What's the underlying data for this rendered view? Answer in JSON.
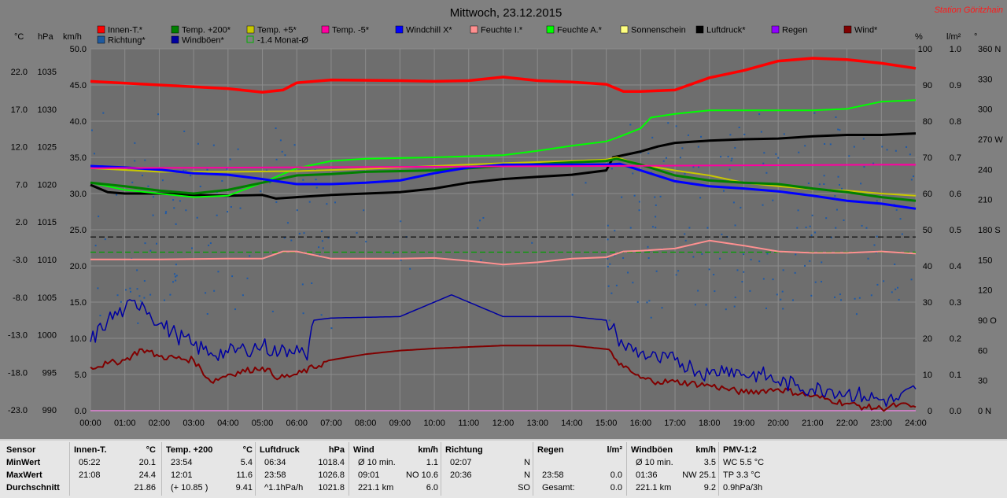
{
  "header": {
    "title": "Mittwoch, 23.12.2015",
    "station": "Station Göritzhain"
  },
  "legend": [
    {
      "label": "Innen-T.*",
      "color": "#ff0000",
      "boxed": false
    },
    {
      "label": "Temp. +200*",
      "color": "#008000",
      "boxed": false
    },
    {
      "label": "Temp. +5*",
      "color": "#c8c800",
      "boxed": false
    },
    {
      "label": "Temp. -5*",
      "color": "#ff00a0",
      "boxed": false
    },
    {
      "label": "Windchill X*",
      "color": "#0000ff",
      "boxed": false
    },
    {
      "label": "Feuchte I.*",
      "color": "#ff9090",
      "boxed": false
    },
    {
      "label": "Feuchte A.*",
      "color": "#00ff00",
      "boxed": false
    },
    {
      "label": "Sonnenschein",
      "color": "#ffff80",
      "boxed": false
    },
    {
      "label": "Luftdruck*",
      "color": "#000000",
      "boxed": false
    },
    {
      "label": "Regen",
      "color": "#9000ff",
      "boxed": false
    },
    {
      "label": "Wind*",
      "color": "#800000",
      "boxed": false
    },
    {
      "label": "Richtung*",
      "color": "#1e5aa0",
      "boxed": false
    },
    {
      "label": "Windböen*",
      "color": "#0000a0",
      "boxed": false
    },
    {
      "label": "-1.4 Monat-Ø",
      "color": "#00b000",
      "boxed": true
    }
  ],
  "units": {
    "c": "°C",
    "hpa": "hPa",
    "kmh": "km/h",
    "pct": "%",
    "lm2": "l/m²",
    "deg": "°"
  },
  "chart_data": {
    "type": "line",
    "x_ticks": [
      "00:00",
      "01:00",
      "02:00",
      "03:00",
      "04:00",
      "05:00",
      "06:00",
      "07:00",
      "08:00",
      "09:00",
      "10:00",
      "11:00",
      "12:00",
      "13:00",
      "14:00",
      "15:00",
      "16:00",
      "17:00",
      "18:00",
      "19:00",
      "20:00",
      "21:00",
      "22:00",
      "23:00",
      "24:00"
    ],
    "axes": {
      "celsius": [
        "22.0",
        "17.0",
        "12.0",
        "7.0",
        "2.0",
        "-3.0",
        "-8.0",
        "-13.0",
        "-18.0",
        "-23.0"
      ],
      "hpa": [
        "1035",
        "1030",
        "1025",
        "1020",
        "1015",
        "1010",
        "1005",
        "1000",
        "995",
        "990"
      ],
      "kmh": [
        "50.0",
        "45.0",
        "40.0",
        "35.0",
        "30.0",
        "25.0",
        "20.0",
        "15.0",
        "10.0",
        "5.0",
        "0.0"
      ],
      "pct": [
        "100",
        "90",
        "80",
        "70",
        "60",
        "50",
        "40",
        "30",
        "20",
        "10",
        "0"
      ],
      "lm2": [
        "1.0",
        "0.9",
        "0.8",
        "0.7",
        "0.6",
        "0.5",
        "0.4",
        "0.3",
        "0.2",
        "0.1",
        "0.0"
      ],
      "dir": [
        "360 N",
        "330",
        "300",
        "270 W",
        "240",
        "210",
        "180 S",
        "150",
        "120",
        "90 O",
        "60",
        "30",
        "0 N"
      ]
    },
    "kmh_range": [
      0,
      50
    ],
    "series": [
      {
        "name": "Innen-T.*",
        "color": "#ff0000",
        "x": [
          0,
          2,
          4,
          5,
          5.6,
          6,
          7,
          9,
          10,
          11,
          12,
          13,
          14,
          15,
          15.5,
          16,
          17,
          18,
          19,
          20,
          21,
          22,
          23,
          24
        ],
        "y": [
          45.5,
          45.0,
          44.5,
          44.0,
          44.3,
          45.3,
          45.7,
          45.6,
          45.5,
          45.6,
          46.1,
          45.6,
          45.4,
          45.1,
          44.1,
          44.1,
          44.3,
          46.0,
          47.0,
          48.3,
          48.7,
          48.5,
          48.0,
          47.3
        ]
      },
      {
        "name": "Feuchte A.*",
        "color": "#00ff00",
        "x": [
          0,
          1,
          2,
          3,
          4,
          5,
          6,
          7,
          8,
          10,
          12,
          13,
          14,
          15,
          15.3,
          16,
          16.3,
          17,
          18,
          19,
          20,
          21,
          22,
          23,
          24
        ],
        "y": [
          31.5,
          30.5,
          30.0,
          29.5,
          29.7,
          31.5,
          33.5,
          34.5,
          34.8,
          35.0,
          35.3,
          35.9,
          36.6,
          37.2,
          37.7,
          39.0,
          40.5,
          41.0,
          41.5,
          41.5,
          41.5,
          41.5,
          41.7,
          42.7,
          42.9
        ]
      },
      {
        "name": "Temp. +5*",
        "color": "#c8c800",
        "x": [
          0,
          2,
          4,
          6,
          8,
          10,
          12,
          14,
          15,
          15.3,
          16,
          17,
          18,
          19,
          20,
          21,
          22,
          23,
          24
        ],
        "y": [
          33.5,
          33.0,
          33.0,
          33.1,
          33.4,
          33.8,
          34.2,
          34.5,
          34.7,
          35.0,
          34.0,
          33.2,
          32.5,
          31.5,
          31.0,
          30.6,
          30.4,
          30.0,
          29.7
        ]
      },
      {
        "name": "Temp. +200*",
        "color": "#008000",
        "x": [
          0,
          1,
          2,
          3,
          4,
          5,
          6,
          7,
          8,
          10,
          12,
          14,
          15,
          15.3,
          16,
          17,
          18,
          19,
          20,
          21,
          22,
          23,
          24
        ],
        "y": [
          31.5,
          31.0,
          30.4,
          30.0,
          30.5,
          31.5,
          32.5,
          32.7,
          33.0,
          33.2,
          33.8,
          34.3,
          34.5,
          34.8,
          34.0,
          32.5,
          31.8,
          31.5,
          31.3,
          30.7,
          30.2,
          29.5,
          29.0
        ]
      },
      {
        "name": "Temp. -5*",
        "color": "#ff00a0",
        "x": [
          0,
          24
        ],
        "y": [
          33.5,
          34.0
        ]
      },
      {
        "name": "Windchill X*",
        "color": "#0000ff",
        "x": [
          0,
          1,
          2,
          3,
          4,
          5,
          6,
          7,
          8,
          9,
          10,
          11,
          12,
          13,
          14,
          15,
          15.4,
          16,
          17,
          18,
          19,
          20,
          21,
          22,
          23,
          24
        ],
        "y": [
          33.8,
          33.6,
          33.3,
          32.8,
          32.6,
          32.0,
          31.3,
          31.3,
          31.5,
          31.8,
          32.8,
          33.6,
          34.0,
          34.0,
          34.0,
          34.0,
          34.1,
          33.2,
          31.7,
          31.0,
          30.7,
          30.3,
          29.7,
          29.0,
          28.6,
          27.9
        ]
      },
      {
        "name": "Feuchte I.*",
        "color": "#ff9090",
        "x": [
          0,
          2,
          4,
          5,
          5.6,
          6,
          7,
          9,
          10,
          11,
          12,
          13,
          14,
          15,
          15.5,
          16,
          17,
          18,
          19,
          20,
          21,
          22,
          23,
          24
        ],
        "y": [
          20.9,
          20.9,
          21.0,
          21.0,
          22.0,
          22.0,
          21.0,
          21.0,
          21.1,
          20.7,
          20.2,
          20.5,
          21.0,
          21.2,
          22.0,
          22.1,
          22.4,
          23.5,
          22.8,
          22.0,
          21.8,
          21.8,
          22.0,
          21.7
        ]
      },
      {
        "name": "Luftdruck*",
        "color": "#000000",
        "x": [
          0,
          0.5,
          1,
          2,
          3,
          4,
          5,
          5.4,
          6,
          7,
          8,
          9,
          10,
          11,
          12,
          13,
          14,
          15,
          15.2,
          16,
          16.5,
          17,
          18,
          19,
          20,
          21,
          22,
          23,
          24
        ],
        "y": [
          31.2,
          30.2,
          30.0,
          30.0,
          29.8,
          29.7,
          29.8,
          29.3,
          29.5,
          29.8,
          30.0,
          30.2,
          30.7,
          31.5,
          32.0,
          32.3,
          32.6,
          33.2,
          35.0,
          35.8,
          36.5,
          37.0,
          37.3,
          37.5,
          37.6,
          37.9,
          38.1,
          38.1,
          38.3
        ]
      },
      {
        "name": "Windböen*",
        "color": "#0000a0",
        "x": [
          0,
          0.5,
          1,
          1.5,
          2,
          2.5,
          3,
          3.5,
          4,
          4.5,
          5,
          5.5,
          6,
          6.3,
          6.5,
          7,
          9,
          10.5,
          12,
          14,
          15,
          15.3,
          15.5,
          16,
          16.5,
          17,
          17.5,
          18,
          18.5,
          19,
          19.5,
          20,
          20.5,
          21,
          21.5,
          22,
          22.5,
          23,
          23.5,
          24
        ],
        "y": [
          9.5,
          12.5,
          14.0,
          15.0,
          12.0,
          10.5,
          9.0,
          8.0,
          8.0,
          8.5,
          9.0,
          8.0,
          9.0,
          7.0,
          12.5,
          12.8,
          13.0,
          16.0,
          13.0,
          13.0,
          12.5,
          10.5,
          9.0,
          8.0,
          7.0,
          7.0,
          6.0,
          5.0,
          6.0,
          5.0,
          5.0,
          4.0,
          3.5,
          3.0,
          3.0,
          2.5,
          2.0,
          1.5,
          1.5,
          3.0
        ]
      },
      {
        "name": "Wind*",
        "color": "#800000",
        "x": [
          0,
          0.5,
          1,
          1.5,
          2,
          3,
          3.5,
          4,
          5,
          5.5,
          6,
          7,
          8,
          9,
          10,
          11,
          12,
          13,
          14,
          15,
          15.3,
          15.5,
          16,
          16.5,
          17,
          18,
          18.5,
          19,
          20,
          21,
          21.5,
          22,
          22.5,
          23,
          23.5,
          24
        ],
        "y": [
          6.0,
          6.5,
          7.0,
          8.5,
          7.5,
          7.0,
          4.0,
          5.0,
          6.0,
          4.5,
          5.0,
          7.0,
          7.8,
          8.3,
          8.6,
          8.8,
          9.0,
          9.0,
          9.0,
          8.5,
          7.0,
          6.0,
          4.5,
          4.0,
          4.0,
          3.5,
          3.0,
          2.5,
          3.0,
          2.0,
          1.5,
          1.0,
          0.5,
          0.3,
          0.8,
          0.5
        ]
      },
      {
        "name": "Sonnenschein",
        "color": "#ffff80",
        "x": [
          0,
          24
        ],
        "y": [
          0,
          0
        ]
      },
      {
        "name": "Regen",
        "color": "#9000ff",
        "x": [
          0,
          24
        ],
        "y": [
          0,
          0
        ]
      }
    ],
    "monthly_mean_celsius": -1.4,
    "ref_dashed_black_hpa": 1013.5
  },
  "stats": {
    "rows": [
      "Sensor",
      "MinWert",
      "MaxWert",
      "Durchschnitt"
    ],
    "cols": [
      {
        "h": "Innen-T.",
        "u": "°C",
        "v": [
          [
            "05:22",
            "20.1"
          ],
          [
            "21:08",
            "24.4"
          ],
          [
            "",
            "21.86"
          ]
        ]
      },
      {
        "h": "Temp. +200",
        "u": "°C",
        "v": [
          [
            "23:54",
            "5.4"
          ],
          [
            "12:01",
            "11.6"
          ],
          [
            "(+ 10.85 )",
            "9.41"
          ]
        ]
      },
      {
        "h": "Luftdruck",
        "u": "hPa",
        "v": [
          [
            "06:34",
            "1018.4"
          ],
          [
            "23:58",
            "1026.8"
          ],
          [
            "^1.1hPa/h",
            "1021.8"
          ]
        ]
      },
      {
        "h": "Wind",
        "u": "km/h",
        "v": [
          [
            "Ø 10 min.",
            "1.1"
          ],
          [
            "09:01",
            "NO 10.6"
          ],
          [
            "221.1 km",
            "6.0"
          ]
        ]
      },
      {
        "h": "Richtung",
        "u": "",
        "v": [
          [
            "02:07",
            "N"
          ],
          [
            "20:36",
            "N"
          ],
          [
            "",
            "SO"
          ]
        ]
      },
      {
        "h": "Regen",
        "u": "l/m²",
        "v": [
          [
            "",
            ""
          ],
          [
            "23:58",
            "0.0"
          ],
          [
            "Gesamt:",
            "0.0"
          ]
        ]
      },
      {
        "h": "Windböen",
        "u": "km/h",
        "v": [
          [
            "Ø 10 min.",
            "3.5"
          ],
          [
            "01:36",
            "NW 25.1"
          ],
          [
            "221.1 km",
            "9.2"
          ]
        ]
      },
      {
        "h": "PMV-1:2",
        "u": "",
        "v": [
          [
            "WC 5.5 °C",
            ""
          ],
          [
            "TP 3.3 °C",
            ""
          ],
          [
            "0.9hPa/3h",
            ""
          ]
        ]
      }
    ]
  }
}
